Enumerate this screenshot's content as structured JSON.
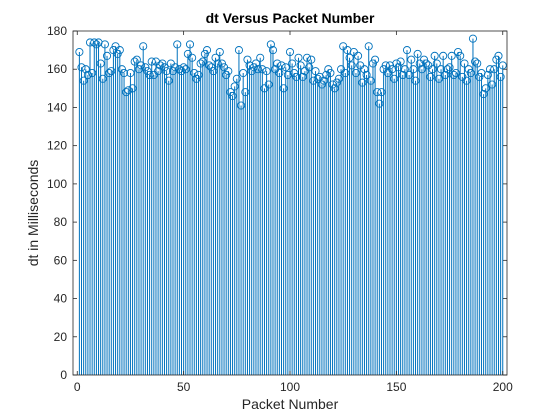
{
  "chart_data": {
    "type": "stem",
    "title": "dt Versus Packet Number",
    "xlabel": "Packet Number",
    "ylabel": "dt in Milliseconds",
    "xlim": [
      -2,
      202
    ],
    "ylim": [
      0,
      180
    ],
    "xticks": [
      0,
      50,
      100,
      150,
      200
    ],
    "yticks": [
      0,
      20,
      40,
      60,
      80,
      100,
      120,
      140,
      160,
      180
    ],
    "grid": false,
    "legend": "none",
    "series_color": "#0072BD",
    "x_start": 1,
    "values": [
      169,
      161,
      154,
      160,
      157,
      174,
      158,
      174,
      173,
      174,
      163,
      155,
      173,
      167,
      158,
      159,
      170,
      172,
      168,
      170,
      160,
      158,
      148,
      149,
      158,
      150,
      164,
      165,
      160,
      162,
      172,
      161,
      159,
      157,
      164,
      157,
      164,
      159,
      162,
      163,
      161,
      159,
      154,
      163,
      159,
      161,
      173,
      160,
      159,
      161,
      160,
      168,
      173,
      166,
      158,
      155,
      157,
      163,
      164,
      168,
      170,
      162,
      161,
      159,
      166,
      163,
      169,
      163,
      161,
      157,
      159,
      148,
      146,
      151,
      155,
      170,
      141,
      158,
      148,
      165,
      162,
      159,
      161,
      163,
      160,
      166,
      160,
      150,
      159,
      152,
      173,
      170,
      160,
      163,
      158,
      162,
      150,
      161,
      157,
      169,
      163,
      158,
      156,
      166,
      162,
      156,
      159,
      166,
      161,
      165,
      154,
      159,
      155,
      156,
      152,
      154,
      157,
      160,
      158,
      152,
      150,
      153,
      155,
      160,
      172,
      158,
      170,
      166,
      162,
      169,
      158,
      167,
      162,
      153,
      160,
      157,
      172,
      154,
      163,
      165,
      148,
      142,
      148,
      160,
      162,
      158,
      162,
      160,
      155,
      163,
      161,
      164,
      157,
      160,
      170,
      157,
      165,
      160,
      154,
      168,
      163,
      160,
      165,
      163,
      162,
      156,
      160,
      167,
      163,
      155,
      160,
      167,
      157,
      160,
      161,
      167,
      157,
      158,
      169,
      167,
      156,
      163,
      154,
      160,
      158,
      176,
      164,
      163,
      156,
      158,
      147,
      150,
      157,
      160,
      152,
      160,
      165,
      167,
      156,
      162
    ]
  }
}
